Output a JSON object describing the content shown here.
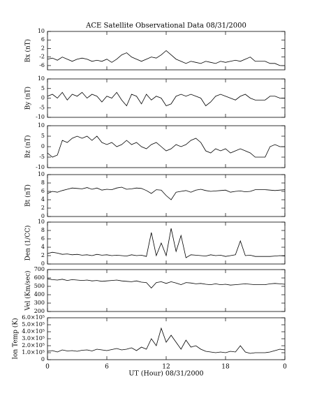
{
  "chart_data": [
    {
      "type": "line",
      "title": "ACE Satellite Observational Data   08/31/2000",
      "y_label": "Bx (nT)",
      "x": [
        0,
        0.5,
        1,
        1.5,
        2,
        2.5,
        3,
        3.5,
        4,
        4.5,
        5,
        5.5,
        6,
        6.5,
        7,
        7.5,
        8,
        8.5,
        9,
        9.5,
        10,
        10.5,
        11,
        11.5,
        12,
        12.5,
        13,
        13.5,
        14,
        14.5,
        15,
        15.5,
        16,
        16.5,
        17,
        17.5,
        18,
        18.5,
        19,
        19.5,
        20,
        20.5,
        21,
        21.5,
        22,
        22.5,
        23,
        23.5,
        24
      ],
      "values": [
        -3,
        -2.5,
        -3.5,
        -2,
        -3,
        -4,
        -3,
        -2.5,
        -3,
        -4,
        -3.5,
        -4,
        -3,
        -4.5,
        -3,
        -1,
        0,
        -2,
        -3,
        -4,
        -3,
        -2,
        -2.5,
        -1,
        1,
        -1,
        -3,
        -4,
        -5,
        -4,
        -4.5,
        -5,
        -4,
        -4.5,
        -5,
        -4,
        -4.5,
        -4,
        -3.5,
        -4,
        -3,
        -2,
        -4,
        -4,
        -4,
        -5,
        -5,
        -6,
        -6
      ],
      "ylim": [
        -8,
        10
      ],
      "yticks": [
        -6,
        -2,
        2,
        6,
        10
      ],
      "xlim": [
        0,
        24
      ]
    },
    {
      "type": "line",
      "y_label": "By (nT)",
      "x": [
        0,
        0.5,
        1,
        1.5,
        2,
        2.5,
        3,
        3.5,
        4,
        4.5,
        5,
        5.5,
        6,
        6.5,
        7,
        7.5,
        8,
        8.5,
        9,
        9.5,
        10,
        10.5,
        11,
        11.5,
        12,
        12.5,
        13,
        13.5,
        14,
        14.5,
        15,
        15.5,
        16,
        16.5,
        17,
        17.5,
        18,
        18.5,
        19,
        19.5,
        20,
        20.5,
        21,
        21.5,
        22,
        22.5,
        23,
        23.5,
        24
      ],
      "values": [
        1,
        2,
        0,
        3,
        -1,
        2,
        1,
        3,
        0,
        2,
        1,
        -2,
        1,
        0,
        3,
        -1,
        -4,
        2,
        1,
        -3,
        2,
        -1,
        1,
        0,
        -4,
        -3,
        1,
        2,
        1,
        2,
        1,
        0,
        -4,
        -2,
        1,
        2,
        1,
        0,
        -1,
        1,
        2,
        0,
        -1,
        -1,
        -1,
        1,
        1,
        0,
        0
      ],
      "ylim": [
        -10,
        10
      ],
      "yticks": [
        -10,
        -5,
        0,
        5,
        10
      ],
      "xlim": [
        0,
        24
      ]
    },
    {
      "type": "line",
      "y_label": "Bz (nT)",
      "x": [
        0,
        0.5,
        1,
        1.5,
        2,
        2.5,
        3,
        3.5,
        4,
        4.5,
        5,
        5.5,
        6,
        6.5,
        7,
        7.5,
        8,
        8.5,
        9,
        9.5,
        10,
        10.5,
        11,
        11.5,
        12,
        12.5,
        13,
        13.5,
        14,
        14.5,
        15,
        15.5,
        16,
        16.5,
        17,
        17.5,
        18,
        18.5,
        19,
        19.5,
        20,
        20.5,
        21,
        21.5,
        22,
        22.5,
        23,
        23.5,
        24
      ],
      "values": [
        -3,
        -5,
        -4,
        3,
        2,
        4,
        5,
        4,
        5,
        3,
        5,
        2,
        1,
        2,
        0,
        1,
        3,
        1,
        2,
        0,
        -1,
        1,
        2,
        0,
        -2,
        -1,
        1,
        0,
        1,
        3,
        4,
        2,
        -2,
        -3,
        -1,
        -2,
        -1,
        -3,
        -2,
        -1,
        -2,
        -3,
        -5,
        -5,
        -5,
        0,
        1,
        0,
        0
      ],
      "ylim": [
        -10,
        10
      ],
      "yticks": [
        -10,
        -5,
        0,
        5,
        10
      ],
      "xlim": [
        0,
        24
      ]
    },
    {
      "type": "line",
      "y_label": "Bt (nT)",
      "x": [
        0,
        0.5,
        1,
        1.5,
        2,
        2.5,
        3,
        3.5,
        4,
        4.5,
        5,
        5.5,
        6,
        6.5,
        7,
        7.5,
        8,
        8.5,
        9,
        9.5,
        10,
        10.5,
        11,
        11.5,
        12,
        12.5,
        13,
        13.5,
        14,
        14.5,
        15,
        15.5,
        16,
        16.5,
        17,
        17.5,
        18,
        18.5,
        19,
        19.5,
        20,
        20.5,
        21,
        21.5,
        22,
        22.5,
        23,
        23.5,
        24
      ],
      "values": [
        5.5,
        6,
        5.8,
        6.2,
        6.5,
        6.8,
        6.7,
        6.6,
        6.9,
        6.5,
        6.8,
        6.3,
        6.5,
        6.4,
        6.8,
        7,
        6.5,
        6.6,
        6.8,
        6.7,
        6.2,
        5.5,
        6.4,
        6.3,
        5,
        4,
        5.8,
        6,
        6.2,
        5.8,
        6.3,
        6.5,
        6.2,
        6,
        6.1,
        6.2,
        6.3,
        5.8,
        6,
        6.1,
        5.9,
        6,
        6.4,
        6.4,
        6.4,
        6.3,
        6.2,
        6.3,
        6.4
      ],
      "ylim": [
        0,
        10
      ],
      "yticks": [
        0,
        2,
        4,
        6,
        8,
        10
      ],
      "xlim": [
        0,
        24
      ]
    },
    {
      "type": "line",
      "y_label": "Den (1/CC)",
      "x": [
        0,
        0.5,
        1,
        1.5,
        2,
        2.5,
        3,
        3.5,
        4,
        4.5,
        5,
        5.5,
        6,
        6.5,
        7,
        7.5,
        8,
        8.5,
        9,
        9.5,
        10,
        10.5,
        11,
        11.5,
        12,
        12.5,
        13,
        13.5,
        14,
        14.5,
        15,
        15.5,
        16,
        16.5,
        17,
        17.5,
        18,
        18.5,
        19,
        19.5,
        20,
        20.5,
        21,
        21.5,
        22,
        22.5,
        23,
        23.5,
        24
      ],
      "values": [
        2.5,
        2.8,
        2.6,
        2.3,
        2.4,
        2.2,
        2.3,
        2.1,
        2.2,
        2,
        2.3,
        2.1,
        2.2,
        2,
        2.1,
        2,
        1.9,
        2.2,
        2,
        2.1,
        1.8,
        7.5,
        2,
        5,
        2,
        8.5,
        3,
        6.8,
        1.5,
        2.2,
        2.1,
        2,
        1.9,
        2.2,
        2,
        2.1,
        1.8,
        2,
        2.2,
        5.5,
        2,
        2.1,
        1.8,
        1.8,
        1.8,
        1.8,
        1.9,
        2,
        1.9
      ],
      "ylim": [
        0,
        10
      ],
      "yticks": [
        0,
        2,
        4,
        6,
        8,
        10
      ],
      "xlim": [
        0,
        24
      ]
    },
    {
      "type": "line",
      "y_label": "Vel (Km/sec)",
      "x": [
        0,
        0.5,
        1,
        1.5,
        2,
        2.5,
        3,
        3.5,
        4,
        4.5,
        5,
        5.5,
        6,
        6.5,
        7,
        7.5,
        8,
        8.5,
        9,
        9.5,
        10,
        10.5,
        11,
        11.5,
        12,
        12.5,
        13,
        13.5,
        14,
        14.5,
        15,
        15.5,
        16,
        16.5,
        17,
        17.5,
        18,
        18.5,
        19,
        19.5,
        20,
        20.5,
        21,
        21.5,
        22,
        22.5,
        23,
        23.5,
        24
      ],
      "values": [
        590,
        580,
        575,
        585,
        570,
        580,
        575,
        570,
        575,
        565,
        570,
        560,
        565,
        570,
        575,
        565,
        560,
        555,
        565,
        550,
        545,
        480,
        545,
        555,
        535,
        555,
        540,
        520,
        545,
        540,
        530,
        535,
        525,
        520,
        530,
        520,
        525,
        515,
        520,
        525,
        530,
        525,
        520,
        520,
        520,
        530,
        535,
        530,
        525
      ],
      "ylim": [
        200,
        700
      ],
      "yticks": [
        200,
        300,
        400,
        500,
        600,
        700
      ],
      "xlim": [
        0,
        24
      ]
    },
    {
      "type": "line",
      "y_label": "Ion Temp (K)",
      "x_label": "UT (Hour)  08/31/2000",
      "x": [
        0,
        0.5,
        1,
        1.5,
        2,
        2.5,
        3,
        3.5,
        4,
        4.5,
        5,
        5.5,
        6,
        6.5,
        7,
        7.5,
        8,
        8.5,
        9,
        9.5,
        10,
        10.5,
        11,
        11.5,
        12,
        12.5,
        13,
        13.5,
        14,
        14.5,
        15,
        15.5,
        16,
        16.5,
        17,
        17.5,
        18,
        18.5,
        19,
        19.5,
        20,
        20.5,
        21,
        21.5,
        22,
        22.5,
        23,
        23.5,
        24
      ],
      "values": [
        120000,
        130000,
        110000,
        140000,
        125000,
        130000,
        120000,
        135000,
        140000,
        125000,
        150000,
        140000,
        130000,
        145000,
        160000,
        140000,
        150000,
        170000,
        130000,
        180000,
        150000,
        300000,
        200000,
        450000,
        250000,
        350000,
        250000,
        150000,
        280000,
        180000,
        200000,
        150000,
        120000,
        110000,
        100000,
        110000,
        100000,
        120000,
        110000,
        200000,
        110000,
        90000,
        100000,
        100000,
        100000,
        110000,
        130000,
        150000,
        140000
      ],
      "ylim": [
        0,
        600000
      ],
      "yticks": [
        0,
        {
          "value": 100000,
          "label": "1.0×10⁵"
        },
        {
          "value": 200000,
          "label": "2.0×10⁵"
        },
        {
          "value": 300000,
          "label": "3.0×10⁵"
        },
        {
          "value": 400000,
          "label": "4.0×10⁵"
        },
        {
          "value": 500000,
          "label": "5.0×10⁵"
        },
        {
          "value": 600000,
          "label": "6.0×10⁵"
        }
      ],
      "xlim": [
        0,
        24
      ],
      "xticks": [
        0,
        6,
        12,
        18,
        {
          "value": 24,
          "label": "0"
        }
      ]
    }
  ]
}
